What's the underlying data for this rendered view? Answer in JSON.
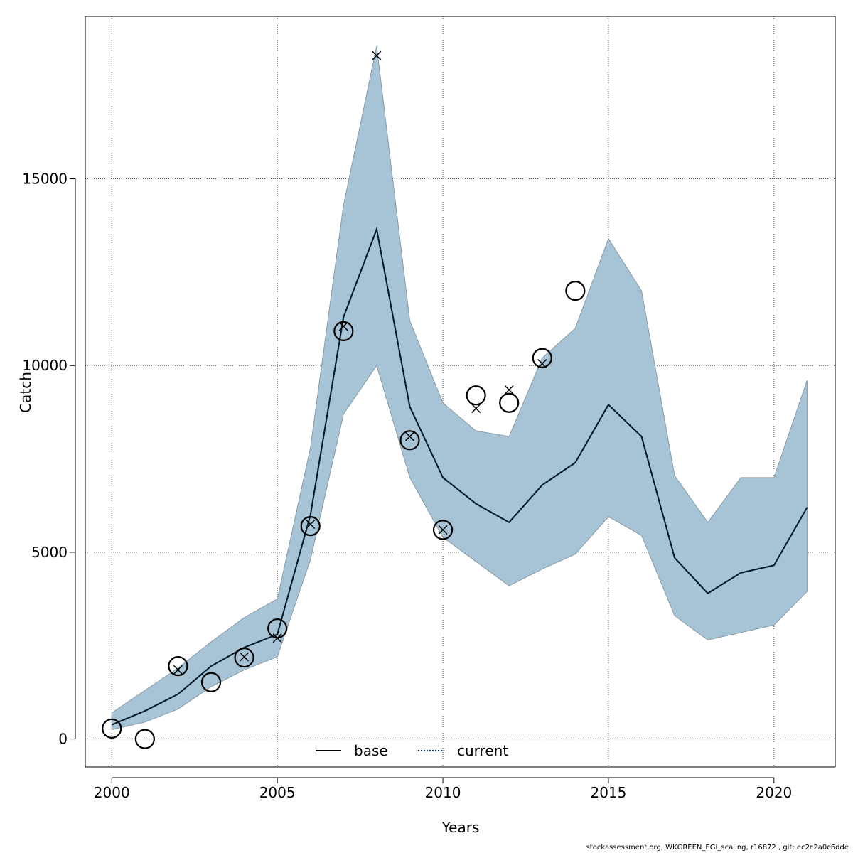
{
  "footer": "stockassessment.org, WKGREEN_EGI_scaling, r16872 , git: ec2c2a0c6dde",
  "chart_data": {
    "type": "line",
    "title": "",
    "xlabel": "Years",
    "ylabel": "Catch",
    "xlim": [
      1999.2,
      2021.85
    ],
    "ylim": [
      -750,
      19350
    ],
    "xticks": [
      2000,
      2005,
      2010,
      2015,
      2020
    ],
    "yticks": [
      0,
      5000,
      10000,
      15000
    ],
    "grid": true,
    "legend_position": "bottom-center",
    "colors": {
      "band": "#a6c4d5",
      "band_edge": "#8a9ba6",
      "current_line": "#00334d",
      "marker": "#000000"
    },
    "x": [
      2000,
      2001,
      2002,
      2003,
      2004,
      2005,
      2006,
      2007,
      2008,
      2009,
      2010,
      2011,
      2012,
      2013,
      2014,
      2015,
      2016,
      2017,
      2018,
      2019,
      2020,
      2021
    ],
    "band_lower": [
      250,
      450,
      800,
      1400,
      1850,
      2200,
      4800,
      8700,
      10000,
      7000,
      5400,
      4750,
      4100,
      4550,
      4950,
      5950,
      5450,
      3300,
      2650,
      2850,
      3050,
      3950
    ],
    "band_upper": [
      700,
      1300,
      1900,
      2600,
      3250,
      3750,
      7800,
      14300,
      18550,
      11200,
      9000,
      8250,
      8100,
      10200,
      11000,
      13400,
      12000,
      7050,
      5800,
      7000,
      7000,
      9600
    ],
    "series": [
      {
        "name": "base",
        "values": [
          380,
          750,
          1200,
          1950,
          2450,
          2800,
          6000,
          11300,
          13650,
          8900,
          7000,
          6300,
          5800,
          6800,
          7400,
          8950,
          8100,
          4850,
          3900,
          4450,
          4650,
          6200
        ]
      },
      {
        "name": "current",
        "values": [
          380,
          750,
          1200,
          1950,
          2450,
          2800,
          6000,
          11300,
          13650,
          8900,
          7000,
          6300,
          5800,
          6800,
          7400,
          8950,
          8100,
          4850,
          3900,
          4450,
          4650,
          6200
        ]
      }
    ],
    "observed": {
      "x": [
        2000,
        2001,
        2002,
        2003,
        2004,
        2005,
        2006,
        2007,
        2009,
        2010,
        2011,
        2012,
        2013,
        2014
      ],
      "y": [
        280,
        0,
        1950,
        1520,
        2180,
        2960,
        5700,
        10920,
        8000,
        5600,
        9200,
        9000,
        10200,
        12000
      ]
    },
    "predicted": {
      "x": [
        2002,
        2004,
        2005,
        2006,
        2007,
        2008,
        2009,
        2010,
        2011,
        2012,
        2013
      ],
      "y": [
        1850,
        2200,
        2700,
        5750,
        11050,
        18300,
        8100,
        5600,
        8850,
        9350,
        10050
      ]
    }
  }
}
